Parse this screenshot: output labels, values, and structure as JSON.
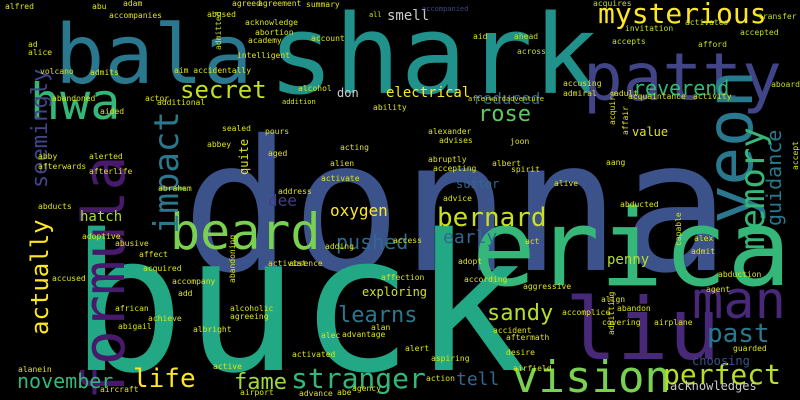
{
  "colors": {
    "background": "#000000",
    "yellow": "#fde725",
    "lime": "#7ad151",
    "green": "#22a884",
    "teal": "#2a788e",
    "blue": "#414487",
    "purple": "#440154"
  },
  "words": [
    {
      "text": "donna",
      "color": "#3b528b"
    },
    {
      "text": "buck",
      "color": "#22a884"
    },
    {
      "text": "shark",
      "color": "#21918c"
    },
    {
      "text": "bala",
      "color": "#2a788e"
    },
    {
      "text": "erica",
      "color": "#35b779"
    },
    {
      "text": "patty",
      "color": "#414487"
    },
    {
      "text": "liu",
      "color": "#482878"
    },
    {
      "text": "formula",
      "color": "#481a6c"
    },
    {
      "text": "hwa",
      "color": "#35b779"
    },
    {
      "text": "beard",
      "color": "#7ad151"
    },
    {
      "text": "yeon",
      "color": "#2a788e"
    },
    {
      "text": "man",
      "color": "#482878"
    },
    {
      "text": "impact",
      "color": "#2a788e"
    },
    {
      "text": "vision",
      "color": "#7ad151"
    },
    {
      "text": "mysterious",
      "color": "#fde725"
    },
    {
      "text": "memory",
      "color": "#35b779"
    },
    {
      "text": "secret",
      "color": "#c2df23"
    },
    {
      "text": "perfect",
      "color": "#b5de2b"
    },
    {
      "text": "stranger",
      "color": "#35b779"
    },
    {
      "text": "bernard",
      "color": "#c8e020"
    },
    {
      "text": "actually",
      "color": "#fde725"
    },
    {
      "text": "life",
      "color": "#fde725"
    },
    {
      "text": "seemingly",
      "color": "#414487"
    },
    {
      "text": "rose",
      "color": "#5ec962"
    },
    {
      "text": "reverend",
      "color": "#35b779"
    },
    {
      "text": "past",
      "color": "#2a788e"
    },
    {
      "text": "guidance",
      "color": "#2a788e"
    },
    {
      "text": "november",
      "color": "#35b779"
    },
    {
      "text": "fame",
      "color": "#a0da39"
    },
    {
      "text": "learns",
      "color": "#2a788e"
    },
    {
      "text": "sandy",
      "color": "#b5de2b"
    },
    {
      "text": "pushed",
      "color": "#31688e"
    },
    {
      "text": "reduced",
      "color": "#31688e"
    },
    {
      "text": "early",
      "color": "#31688e"
    },
    {
      "text": "tell",
      "color": "#31688e"
    },
    {
      "text": "oxygen",
      "color": "#fde725"
    },
    {
      "text": "dee",
      "color": "#433e85"
    },
    {
      "text": "electrical",
      "color": "#fde725"
    },
    {
      "text": "hatch",
      "color": "#a8db34"
    },
    {
      "text": "penny",
      "color": "#b5de2b"
    },
    {
      "text": "smell",
      "color": "#cccccc"
    },
    {
      "text": "exploring",
      "color": "#cfe11c"
    },
    {
      "text": "value",
      "color": "#dfe318"
    },
    {
      "text": "choosing",
      "color": "#3b528b"
    },
    {
      "text": "acknowledges",
      "color": "#cccccc"
    },
    {
      "text": "suitor",
      "color": "#31688e"
    },
    {
      "text": "don",
      "color": "#cccccc"
    },
    {
      "text": "quite",
      "color": "#dfe318"
    },
    {
      "text": "alfred",
      "color": "#dde318"
    },
    {
      "text": "abu",
      "color": "#dde318"
    },
    {
      "text": "adam",
      "color": "#dde318"
    },
    {
      "text": "accompanies",
      "color": "#dde318"
    },
    {
      "text": "abused",
      "color": "#dde318"
    },
    {
      "text": "agreed",
      "color": "#dde318"
    },
    {
      "text": "agreement",
      "color": "#dde318"
    },
    {
      "text": "summary",
      "color": "#dde318"
    },
    {
      "text": "accompanied",
      "color": "#3e4989"
    },
    {
      "text": "acquires",
      "color": "#c2df23"
    },
    {
      "text": "transfer",
      "color": "#c2df23"
    },
    {
      "text": "invitation",
      "color": "#c2df23"
    },
    {
      "text": "activates",
      "color": "#c2df23"
    },
    {
      "text": "accepted",
      "color": "#c2df23"
    },
    {
      "text": "accepts",
      "color": "#c2df23"
    },
    {
      "text": "afford",
      "color": "#c2df23"
    },
    {
      "text": "aboard",
      "color": "#c2df23"
    },
    {
      "text": "across",
      "color": "#c2df23"
    },
    {
      "text": "ahead",
      "color": "#c2df23"
    },
    {
      "text": "admitted",
      "color": "#c2df23"
    },
    {
      "text": "acknowledge",
      "color": "#dde318"
    },
    {
      "text": "abortion",
      "color": "#dde318"
    },
    {
      "text": "academy",
      "color": "#dde318"
    },
    {
      "text": "intelligent",
      "color": "#dde318"
    },
    {
      "text": "account",
      "color": "#dde318"
    },
    {
      "text": "aid",
      "color": "#dde318"
    },
    {
      "text": "all",
      "color": "#dde318"
    },
    {
      "text": "ad",
      "color": "#dde318"
    },
    {
      "text": "alice",
      "color": "#dde318"
    },
    {
      "text": "volcano",
      "color": "#dde318"
    },
    {
      "text": "admits",
      "color": "#dde318"
    },
    {
      "text": "aim accidentally",
      "color": "#dde318"
    },
    {
      "text": "actor",
      "color": "#dde318"
    },
    {
      "text": "additional",
      "color": "#dde318"
    },
    {
      "text": "alcohol",
      "color": "#dde318"
    },
    {
      "text": "addition",
      "color": "#dde318"
    },
    {
      "text": "ability",
      "color": "#dde318"
    },
    {
      "text": "afterward",
      "color": "#dde318"
    },
    {
      "text": "adventure",
      "color": "#dde318"
    },
    {
      "text": "accusing",
      "color": "#dde318"
    },
    {
      "text": "admiral",
      "color": "#dde318"
    },
    {
      "text": "adult",
      "color": "#dde318"
    },
    {
      "text": "acquaintance",
      "color": "#dde318"
    },
    {
      "text": "activity",
      "color": "#dde318"
    },
    {
      "text": "acquire",
      "color": "#dde318"
    },
    {
      "text": "affair",
      "color": "#dde318"
    },
    {
      "text": "abandoned",
      "color": "#dde318"
    },
    {
      "text": "aided",
      "color": "#dde318"
    },
    {
      "text": "abby",
      "color": "#dde318"
    },
    {
      "text": "afterwards",
      "color": "#dde318"
    },
    {
      "text": "afterlife",
      "color": "#dde318"
    },
    {
      "text": "alerted",
      "color": "#dde318"
    },
    {
      "text": "abraham",
      "color": "#dde318"
    },
    {
      "text": "abducts",
      "color": "#dde318"
    },
    {
      "text": "adoptive",
      "color": "#dde318"
    },
    {
      "text": "abusive",
      "color": "#dde318"
    },
    {
      "text": "affect",
      "color": "#dde318"
    },
    {
      "text": "acquired",
      "color": "#dde318"
    },
    {
      "text": "accompany",
      "color": "#dde318"
    },
    {
      "text": "accused",
      "color": "#dde318"
    },
    {
      "text": "african",
      "color": "#dde318"
    },
    {
      "text": "abigail",
      "color": "#dde318"
    },
    {
      "text": "achieve",
      "color": "#dde318"
    },
    {
      "text": "albright",
      "color": "#dde318"
    },
    {
      "text": "agreeing",
      "color": "#dde318"
    },
    {
      "text": "alcoholic",
      "color": "#dde318"
    },
    {
      "text": "add",
      "color": "#dde318"
    },
    {
      "text": "alanein",
      "color": "#dde318"
    },
    {
      "text": "aircraft",
      "color": "#dde318"
    },
    {
      "text": "active",
      "color": "#dde318"
    },
    {
      "text": "airport",
      "color": "#dde318"
    },
    {
      "text": "advance",
      "color": "#dde318"
    },
    {
      "text": "abe",
      "color": "#dde318"
    },
    {
      "text": "agency",
      "color": "#dde318"
    },
    {
      "text": "pours",
      "color": "#dde318"
    },
    {
      "text": "aged",
      "color": "#dde318"
    },
    {
      "text": "sealed",
      "color": "#dde318"
    },
    {
      "text": "abbey",
      "color": "#dde318"
    },
    {
      "text": "address",
      "color": "#dde318"
    },
    {
      "text": "alien",
      "color": "#dde318"
    },
    {
      "text": "acting",
      "color": "#dde318"
    },
    {
      "text": "activate",
      "color": "#dde318"
    },
    {
      "text": "adding",
      "color": "#dde318"
    },
    {
      "text": "activist",
      "color": "#dde318"
    },
    {
      "text": "absence",
      "color": "#dde318"
    },
    {
      "text": "alec",
      "color": "#dde318"
    },
    {
      "text": "activated",
      "color": "#dde318"
    },
    {
      "text": "advantage",
      "color": "#dde318"
    },
    {
      "text": "alan",
      "color": "#dde318"
    },
    {
      "text": "alexander",
      "color": "#dde318"
    },
    {
      "text": "advises",
      "color": "#dde318"
    },
    {
      "text": "abruptly",
      "color": "#dde318"
    },
    {
      "text": "accepting",
      "color": "#dde318"
    },
    {
      "text": "advice",
      "color": "#dde318"
    },
    {
      "text": "adopt",
      "color": "#dde318"
    },
    {
      "text": "according",
      "color": "#dde318"
    },
    {
      "text": "alert",
      "color": "#dde318"
    },
    {
      "text": "accident",
      "color": "#dde318"
    },
    {
      "text": "aftermath",
      "color": "#dde318"
    },
    {
      "text": "desire",
      "color": "#dde318"
    },
    {
      "text": "airfield",
      "color": "#dde318"
    },
    {
      "text": "aspiring",
      "color": "#dde318"
    },
    {
      "text": "action",
      "color": "#dde318"
    },
    {
      "text": "aggressive",
      "color": "#dde318"
    },
    {
      "text": "accomplice",
      "color": "#dde318"
    },
    {
      "text": "spirit",
      "color": "#dde318"
    },
    {
      "text": "albert",
      "color": "#dde318"
    },
    {
      "text": "alive",
      "color": "#dde318"
    },
    {
      "text": "aang",
      "color": "#dde318"
    },
    {
      "text": "abducted",
      "color": "#dde318"
    },
    {
      "text": "capable",
      "color": "#dde318"
    },
    {
      "text": "alex",
      "color": "#dde318"
    },
    {
      "text": "admit",
      "color": "#dde318"
    },
    {
      "text": "abduction",
      "color": "#dde318"
    },
    {
      "text": "agent",
      "color": "#dde318"
    },
    {
      "text": "align",
      "color": "#dde318"
    },
    {
      "text": "abandon",
      "color": "#dde318"
    },
    {
      "text": "covering",
      "color": "#dde318"
    },
    {
      "text": "airplane",
      "color": "#dde318"
    },
    {
      "text": "admitting",
      "color": "#dde318"
    },
    {
      "text": "guarded",
      "color": "#dde318"
    },
    {
      "text": "joon",
      "color": "#dde318"
    },
    {
      "text": "abandoning",
      "color": "#dde318"
    },
    {
      "text": "act",
      "color": "#dde318"
    },
    {
      "text": "accept",
      "color": "#dde318"
    },
    {
      "text": "affection",
      "color": "#dde318"
    },
    {
      "text": "access",
      "color": "#dde318"
    }
  ]
}
